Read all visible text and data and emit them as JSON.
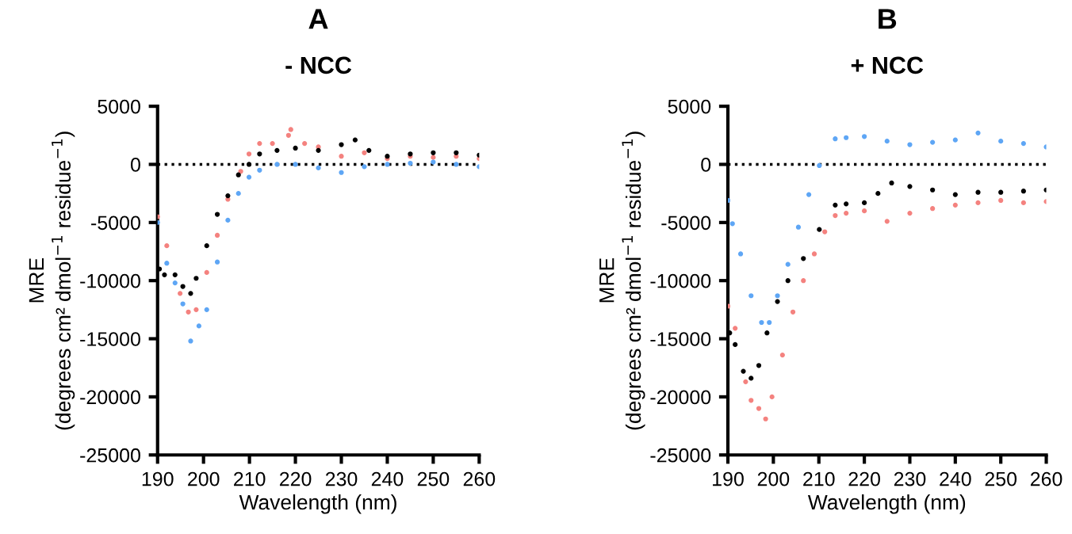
{
  "chart_data": [
    {
      "type": "scatter",
      "title": "A",
      "subtitle": "- NCC",
      "xlabel": "Wavelength (nm)",
      "ylabel": "MRE\n(degrees cm² dmol$^{−1}$ residue$^{−1}$)",
      "xlim": [
        190,
        260
      ],
      "ylim": [
        -25000,
        5000
      ],
      "xticks": [
        190,
        200,
        210,
        220,
        230,
        240,
        250,
        260
      ],
      "yticks": [
        -25000,
        -20000,
        -15000,
        -10000,
        -5000,
        0,
        5000
      ],
      "marker": "circle",
      "grid": false,
      "legend": false,
      "ref_lines": [
        {
          "axis": "y",
          "value": 0,
          "color": "#000000",
          "line_style": "dotted"
        }
      ],
      "series": [
        {
          "color": "#f4827f",
          "x": [
            190,
            192,
            194.9,
            196.7,
            198.4,
            200.7,
            203,
            205.3,
            208.1,
            209.9,
            212.2,
            215,
            218.5,
            219,
            222,
            225,
            230,
            235,
            240,
            245,
            250,
            255,
            260
          ],
          "values": [
            -4500,
            -7000,
            -11100,
            -12700,
            -12500,
            -9300,
            -6100,
            -3000,
            -600,
            900,
            1800,
            1800,
            2500,
            3000,
            1800,
            1500,
            700,
            1000,
            500,
            700,
            600,
            700,
            500
          ]
        },
        {
          "color": "#5ea6f5",
          "x": [
            190,
            192,
            193.8,
            195.5,
            197.2,
            199,
            200.7,
            203,
            205.3,
            207.6,
            209.9,
            212.2,
            216,
            220,
            225,
            230,
            235,
            240,
            245,
            250,
            255,
            260
          ],
          "values": [
            -5000,
            -8500,
            -10200,
            -12000,
            -15200,
            -13900,
            -12500,
            -8400,
            -4800,
            -2500,
            -1100,
            -500,
            0,
            0,
            -300,
            -700,
            -200,
            0,
            100,
            200,
            0,
            -200
          ]
        },
        {
          "color": "#000000",
          "x": [
            190.4,
            191.5,
            193.8,
            195.5,
            197.2,
            198.4,
            200.7,
            203,
            205.3,
            207.6,
            209.9,
            212.2,
            216,
            220,
            225,
            230,
            233,
            236,
            240,
            245,
            250,
            255,
            260
          ],
          "values": [
            -9000,
            -9500,
            -9500,
            -10500,
            -11100,
            -9800,
            -7000,
            -4300,
            -2700,
            -900,
            0,
            900,
            1200,
            1400,
            1200,
            1700,
            2100,
            1200,
            700,
            900,
            1000,
            1000,
            800
          ]
        }
      ]
    },
    {
      "type": "scatter",
      "title": "B",
      "subtitle": "+ NCC",
      "xlabel": "Wavelength (nm)",
      "ylabel": "MRE\n(degrees cm² dmol$^{−1}$ residue$^{−1}$)",
      "xlim": [
        190,
        260
      ],
      "ylim": [
        -25000,
        5000
      ],
      "xticks": [
        190,
        200,
        210,
        220,
        230,
        240,
        250,
        260
      ],
      "yticks": [
        -25000,
        -20000,
        -15000,
        -10000,
        -5000,
        0,
        5000
      ],
      "marker": "circle",
      "grid": false,
      "legend": false,
      "ref_lines": [
        {
          "axis": "y",
          "value": 0,
          "color": "#000000",
          "line_style": "dotted"
        }
      ],
      "series": [
        {
          "color": "#5ea6f5",
          "x": [
            190,
            191,
            192.8,
            195.1,
            197.4,
            199.1,
            200.9,
            203.2,
            205.5,
            207.8,
            210.1,
            213.6,
            216,
            220,
            225,
            230,
            235,
            240,
            245,
            250,
            255,
            260
          ],
          "values": [
            -3100,
            -5100,
            -7700,
            -11300,
            -13600,
            -13600,
            -11300,
            -8600,
            -5400,
            -2600,
            -100,
            2200,
            2300,
            2400,
            2000,
            1700,
            1900,
            2100,
            2700,
            2000,
            1800,
            1500
          ]
        },
        {
          "color": "#000000",
          "x": [
            190.4,
            191.6,
            193.4,
            195.1,
            196.8,
            198.6,
            200.9,
            203.2,
            206.6,
            210.1,
            213.6,
            216,
            220,
            223,
            226,
            230,
            235,
            240,
            245,
            250,
            255,
            260
          ],
          "values": [
            -14500,
            -15500,
            -17800,
            -18400,
            -17300,
            -14500,
            -11800,
            -10000,
            -8100,
            -5600,
            -3500,
            -3400,
            -3300,
            -2500,
            -1600,
            -1900,
            -2200,
            -2600,
            -2400,
            -2400,
            -2300,
            -2200
          ]
        },
        {
          "color": "#f4827f",
          "x": [
            190,
            191.6,
            193.9,
            195.1,
            196.8,
            198.3,
            199.7,
            202,
            204.3,
            206.6,
            209,
            211.3,
            213.6,
            216,
            220,
            225,
            230,
            235,
            240,
            245,
            250,
            255,
            260
          ],
          "values": [
            -12200,
            -14100,
            -18700,
            -20300,
            -21000,
            -21900,
            -20000,
            -16400,
            -12700,
            -10000,
            -7700,
            -5800,
            -4400,
            -4200,
            -4000,
            -4900,
            -4200,
            -3800,
            -3500,
            -3300,
            -3100,
            -3300,
            -3200
          ]
        }
      ]
    }
  ]
}
